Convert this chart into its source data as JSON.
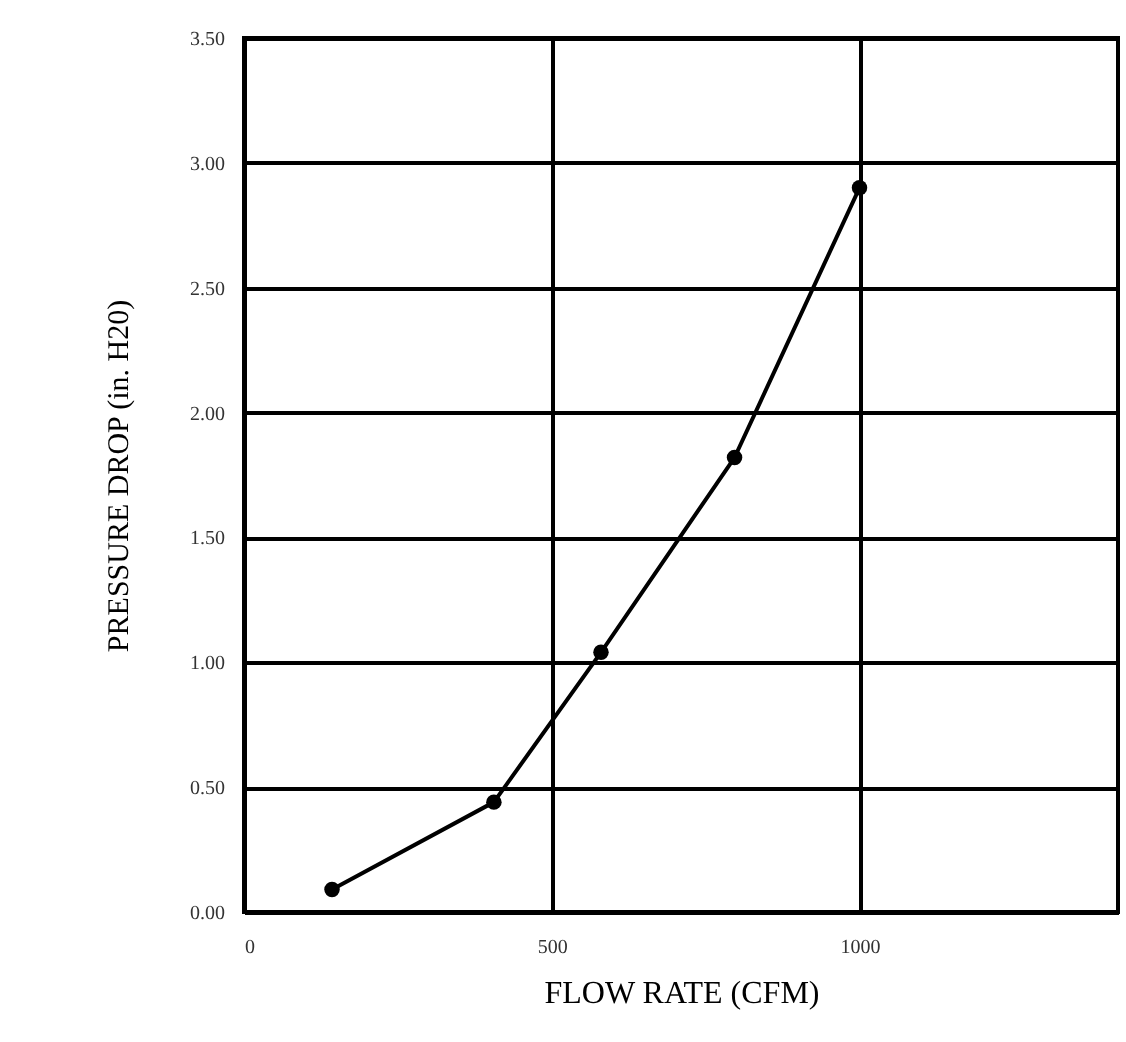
{
  "chart_data": {
    "type": "line",
    "xlabel": "FLOW RATE (CFM)",
    "ylabel": "PRESSURE DROP (in. H20)",
    "x": [
      143,
      406,
      580,
      797,
      1000
    ],
    "series": [
      {
        "color": "#000000",
        "values": [
          0.09,
          0.44,
          1.04,
          1.82,
          2.9
        ]
      }
    ],
    "xlim": [
      0,
      1420
    ],
    "xticks": [
      0,
      500,
      1000
    ],
    "ylim": [
      0,
      3.5
    ],
    "yticks": [
      {
        "value": 0,
        "label": "0.00"
      },
      {
        "value": 0.5,
        "label": "0.50"
      },
      {
        "value": 1,
        "label": "1.00"
      },
      {
        "value": 1.5,
        "label": "1.50"
      },
      {
        "value": 2,
        "label": "2.00"
      },
      {
        "value": 2.5,
        "label": "2.50"
      },
      {
        "value": 3,
        "label": "3.00"
      },
      {
        "value": 3.5,
        "label": "3.50"
      }
    ],
    "grid": true,
    "marker": "circle",
    "line_style": "solid"
  }
}
